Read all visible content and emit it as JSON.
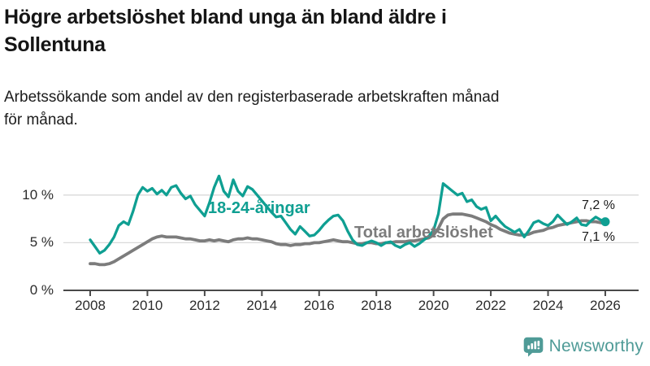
{
  "title_lines": [
    "Högre arbetslöshet bland unga än bland äldre i",
    "Sollentuna"
  ],
  "subtitle_lines": [
    "Arbetssökande som andel av den registerbaserade arbetskraften månad",
    "för månad."
  ],
  "chart_data": {
    "type": "line",
    "title": "Högre arbetslöshet bland unga än bland äldre i Sollentuna",
    "subtitle": "Arbetssökande som andel av den registerbaserade arbetskraften månad för månad.",
    "xlabel": "",
    "ylabel": "",
    "unit": "%",
    "grid": "horizontal-only",
    "legend_position": "inline-labels-on-lines",
    "x_start_year": 2008,
    "x_step_years": 0.16667,
    "x_end_year": 2026,
    "xlim": [
      2008,
      2026.3
    ],
    "ylim": [
      0,
      12.5
    ],
    "xticks": [
      2008,
      2010,
      2012,
      2014,
      2016,
      2018,
      2020,
      2022,
      2024,
      2026
    ],
    "yticks": [
      {
        "value": 0,
        "label": "0 %"
      },
      {
        "value": 5,
        "label": "5 %"
      },
      {
        "value": 10,
        "label": "10 %"
      }
    ],
    "series": [
      {
        "name": "Total arbetslöshet",
        "color": "#7c7c7c",
        "end_label": "7,1 %",
        "end_dot": false,
        "values": [
          2.8,
          2.8,
          2.7,
          2.7,
          2.8,
          3.0,
          3.3,
          3.6,
          3.9,
          4.2,
          4.5,
          4.8,
          5.1,
          5.4,
          5.6,
          5.7,
          5.6,
          5.6,
          5.6,
          5.5,
          5.4,
          5.4,
          5.3,
          5.2,
          5.2,
          5.3,
          5.2,
          5.3,
          5.2,
          5.1,
          5.3,
          5.4,
          5.4,
          5.5,
          5.4,
          5.4,
          5.3,
          5.2,
          5.1,
          4.9,
          4.8,
          4.8,
          4.7,
          4.8,
          4.8,
          4.9,
          4.9,
          5.0,
          5.0,
          5.1,
          5.2,
          5.3,
          5.2,
          5.1,
          5.1,
          5.0,
          4.9,
          4.9,
          5.0,
          5.0,
          4.9,
          4.9,
          5.0,
          5.0,
          5.1,
          5.1,
          5.1,
          5.2,
          5.2,
          5.3,
          5.4,
          5.5,
          5.8,
          6.5,
          7.5,
          7.9,
          8.0,
          8.0,
          8.0,
          7.9,
          7.8,
          7.6,
          7.4,
          7.2,
          6.9,
          6.7,
          6.4,
          6.2,
          6.0,
          5.9,
          5.8,
          5.8,
          5.9,
          6.1,
          6.2,
          6.3,
          6.5,
          6.6,
          6.8,
          6.9,
          7.0,
          7.1,
          7.2,
          7.3,
          7.3,
          7.2,
          7.2,
          7.1,
          7.1
        ]
      },
      {
        "name": "18-24-åringar",
        "color": "#0f9f92",
        "end_label": "7,2 %",
        "end_dot": true,
        "values": [
          5.3,
          4.6,
          3.9,
          4.2,
          4.8,
          5.6,
          6.8,
          7.2,
          6.9,
          8.3,
          10.0,
          10.8,
          10.4,
          10.7,
          10.1,
          10.5,
          10.0,
          10.8,
          11.0,
          10.2,
          9.6,
          9.9,
          9.0,
          8.4,
          7.8,
          9.2,
          10.8,
          12.0,
          10.4,
          9.8,
          11.6,
          10.4,
          9.9,
          10.9,
          10.6,
          10.0,
          9.4,
          8.8,
          8.2,
          7.7,
          7.8,
          7.1,
          6.4,
          5.9,
          6.7,
          6.2,
          5.7,
          5.8,
          6.3,
          6.9,
          7.4,
          7.8,
          7.9,
          7.3,
          6.2,
          5.3,
          4.8,
          4.7,
          5.0,
          5.2,
          5.0,
          4.7,
          5.0,
          5.1,
          4.7,
          4.5,
          4.8,
          5.0,
          4.6,
          4.9,
          5.3,
          5.7,
          6.3,
          8.0,
          11.2,
          10.8,
          10.4,
          10.0,
          10.2,
          9.3,
          9.5,
          8.8,
          8.5,
          8.7,
          7.3,
          7.8,
          7.2,
          6.7,
          6.4,
          6.1,
          6.4,
          5.6,
          6.3,
          7.1,
          7.3,
          7.0,
          6.8,
          7.2,
          7.9,
          7.4,
          6.9,
          7.2,
          7.6,
          6.9,
          6.8,
          7.3,
          7.7,
          7.4,
          7.2
        ]
      }
    ]
  },
  "colors": {
    "accent_teal": "#0f9f92",
    "line_gray": "#7c7c7c",
    "gridline": "#d9d9d9",
    "axis": "#4a4a4a",
    "text_dark": "#151515",
    "logo_teal": "#4f9b97"
  },
  "logo": {
    "text": "Newsworthy",
    "icon": "newsworthy-bar-chart-bubble-icon"
  }
}
